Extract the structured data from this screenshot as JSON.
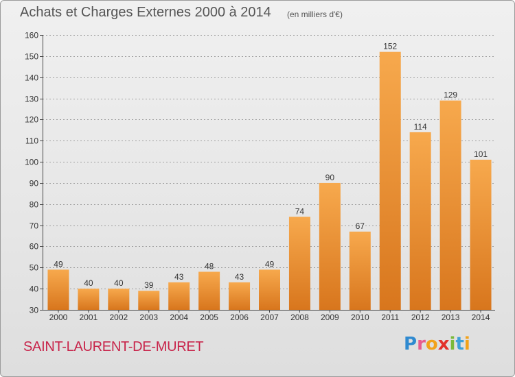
{
  "header": {
    "title": "Achats et Charges Externes 2000 à 2014",
    "unit": "(en milliers d'€)"
  },
  "footer": {
    "commune": "SAINT-LAURENT-DE-MURET",
    "logo": "Proxiti"
  },
  "colors": {
    "bar_top": "#f7a94d",
    "bar_bottom": "#d8761d",
    "grid": "#555555",
    "text": "#333333",
    "commune": "#c8254b"
  },
  "chart_data": {
    "type": "bar",
    "categories": [
      "2000",
      "2001",
      "2002",
      "2003",
      "2004",
      "2005",
      "2006",
      "2007",
      "2008",
      "2009",
      "2010",
      "2011",
      "2012",
      "2013",
      "2014"
    ],
    "values": [
      49,
      40,
      40,
      39,
      43,
      48,
      43,
      49,
      74,
      90,
      67,
      152,
      114,
      129,
      101
    ],
    "ylim": [
      30,
      160
    ],
    "yticks": [
      30,
      40,
      50,
      60,
      70,
      80,
      90,
      100,
      110,
      120,
      130,
      140,
      150,
      160
    ],
    "grid": true,
    "data_labels": true
  }
}
